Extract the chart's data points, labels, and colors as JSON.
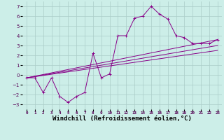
{
  "background_color": "#cceee8",
  "grid_color": "#aaccc8",
  "line_color": "#880088",
  "xlabel": "Windchill (Refroidissement éolien,°C)",
  "xlabel_fontsize": 6.5,
  "ylabel_ticks": [
    -3,
    -2,
    -1,
    0,
    1,
    2,
    3,
    4,
    5,
    6,
    7
  ],
  "xtick_labels": [
    "0",
    "1",
    "2",
    "3",
    "4",
    "5",
    "6",
    "7",
    "8",
    "9",
    "10",
    "11",
    "12",
    "13",
    "14",
    "15",
    "16",
    "17",
    "18",
    "19",
    "20",
    "21",
    "22",
    "23"
  ],
  "series1_x": [
    0,
    1,
    2,
    3,
    4,
    5,
    6,
    7,
    8,
    9,
    10,
    11,
    12,
    13,
    14,
    15,
    16,
    17,
    18,
    19,
    20,
    21,
    22,
    23
  ],
  "series1_y": [
    -0.3,
    -0.3,
    -1.8,
    -0.3,
    -2.2,
    -2.8,
    -2.2,
    -1.8,
    2.2,
    -0.3,
    0.1,
    4.0,
    4.0,
    5.8,
    6.0,
    7.0,
    6.2,
    5.7,
    4.0,
    3.8,
    3.2,
    3.2,
    3.2,
    3.6
  ],
  "series2_x": [
    0,
    23
  ],
  "series2_y": [
    -0.3,
    3.6
  ],
  "series3_x": [
    0,
    23
  ],
  "series3_y": [
    -0.3,
    2.5
  ],
  "series4_x": [
    0,
    23
  ],
  "series4_y": [
    -0.3,
    3.0
  ],
  "ylim": [
    -3.5,
    7.5
  ],
  "xlim": [
    -0.5,
    23.5
  ],
  "figsize": [
    3.2,
    2.0
  ],
  "dpi": 100
}
